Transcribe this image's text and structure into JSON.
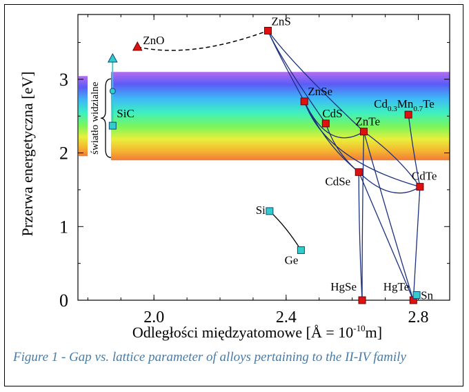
{
  "chart_data": {
    "type": "scatter",
    "title": "",
    "xlabel": "Odległości międzyatomowe [Å = 10",
    "xlabel_sup": "-10",
    "xlabel_tail": "m]",
    "ylabel": "Przerwa energetyczna [eV]",
    "xlim": [
      1.77,
      2.895
    ],
    "ylim": [
      0,
      3.88
    ],
    "x_ticks": [
      2.0,
      2.4,
      2.8
    ],
    "x_tick_labels": [
      "2.0",
      "2.4",
      "2.8"
    ],
    "y_ticks": [
      0,
      1,
      2,
      3
    ],
    "y_tick_labels": [
      "0",
      "1",
      "2",
      "3"
    ],
    "visible_band": {
      "label": "światło widzialne",
      "y_range": [
        1.9,
        3.1
      ],
      "x_start": 1.87
    },
    "colors": {
      "red_marker": "#dd1111",
      "cyan_marker": "#33cccc",
      "curve": "#1a2f80",
      "caption": "#4a7aa6"
    },
    "points": [
      {
        "name": "ZnO",
        "label": "ZnO",
        "x": 1.95,
        "y": 3.44,
        "shape": "triangle",
        "color": "red"
      },
      {
        "name": "ZnS",
        "label": "ZnS",
        "x": 2.345,
        "y": 3.66,
        "shape": "square",
        "color": "red"
      },
      {
        "name": "ZnSe",
        "label": "ZnSe",
        "x": 2.455,
        "y": 2.7,
        "shape": "square",
        "color": "red"
      },
      {
        "name": "CdS",
        "label": "CdS",
        "x": 2.52,
        "y": 2.4,
        "shape": "square",
        "color": "red"
      },
      {
        "name": "ZnTe",
        "label": "ZnTe",
        "x": 2.635,
        "y": 2.29,
        "shape": "square",
        "color": "red"
      },
      {
        "name": "CdSe",
        "label": "CdSe",
        "x": 2.62,
        "y": 1.74,
        "shape": "square",
        "color": "red"
      },
      {
        "name": "CdTe",
        "label": "CdTe",
        "x": 2.805,
        "y": 1.54,
        "shape": "square",
        "color": "red"
      },
      {
        "name": "CdMnTe",
        "label": "Cd",
        "sub1": "0.3",
        "mid": "Mn",
        "sub2": "0.7",
        "tail": "Te",
        "x": 2.77,
        "y": 2.52,
        "shape": "square",
        "color": "red"
      },
      {
        "name": "HgSe",
        "label": "HgSe",
        "x": 2.63,
        "y": 0.0,
        "shape": "square",
        "color": "red"
      },
      {
        "name": "HgTe",
        "label": "HgTe",
        "x": 2.785,
        "y": 0.0,
        "shape": "square",
        "color": "red"
      },
      {
        "name": "SiC",
        "label": "SiC",
        "x": 1.875,
        "y": 2.37,
        "shape": "square",
        "color": "cyan"
      },
      {
        "name": "SiC-circle",
        "label": "",
        "x": 1.875,
        "y": 2.84,
        "shape": "circle",
        "color": "cyan"
      },
      {
        "name": "SiC-triangle",
        "label": "",
        "x": 1.875,
        "y": 3.28,
        "shape": "triangle",
        "color": "cyan"
      },
      {
        "name": "Si",
        "label": "Si",
        "x": 2.35,
        "y": 1.21,
        "shape": "square",
        "color": "cyan"
      },
      {
        "name": "Ge",
        "label": "Ge",
        "x": 2.445,
        "y": 0.68,
        "shape": "square",
        "color": "cyan"
      },
      {
        "name": "Sn",
        "label": "Sn",
        "x": 2.795,
        "y": 0.07,
        "shape": "square",
        "color": "cyan"
      }
    ],
    "dashed_curve": {
      "from": "ZnO",
      "to": "ZnS",
      "via": [
        2.115,
        3.28
      ]
    },
    "curves": [
      {
        "from": "ZnS",
        "to": "ZnSe",
        "via": [
          2.37,
          3.4
        ]
      },
      {
        "from": "ZnS",
        "to": "CdS",
        "via": [
          2.38,
          3.3
        ]
      },
      {
        "from": "ZnS",
        "to": "ZnTe",
        "via": [
          2.42,
          3.2
        ]
      },
      {
        "from": "ZnSe",
        "to": "CdSe",
        "via": [
          2.52,
          2.1
        ]
      },
      {
        "from": "ZnSe",
        "to": "CdTe",
        "via": [
          2.52,
          1.9
        ]
      },
      {
        "from": "ZnSe",
        "to": "ZnTe",
        "via": [
          2.53,
          2.0
        ]
      },
      {
        "from": "CdS",
        "to": "CdSe",
        "via": [
          2.55,
          2.0
        ]
      },
      {
        "from": "ZnTe",
        "to": "CdTe",
        "via": [
          2.74,
          1.95
        ]
      },
      {
        "from": "CdSe",
        "to": "CdTe",
        "via": [
          2.72,
          1.3
        ]
      },
      {
        "from": "CdSe",
        "to": "HgSe",
        "via": [
          2.62,
          0.9
        ]
      },
      {
        "from": "ZnTe",
        "to": "HgSe",
        "via": [
          2.63,
          1.1
        ]
      },
      {
        "from": "ZnTe",
        "to": "HgTe",
        "via": [
          2.71,
          1.1
        ]
      },
      {
        "from": "CdSe",
        "to": "HgTe",
        "via": [
          2.7,
          0.9
        ]
      },
      {
        "from": "CdTe",
        "to": "HgTe",
        "via": [
          2.795,
          0.8
        ]
      },
      {
        "from": "CdMnTe",
        "to": "CdTe",
        "via": [
          2.785,
          2.0
        ]
      },
      {
        "from": "Si",
        "to": "Ge",
        "via": [
          2.4,
          1.0
        ]
      },
      {
        "from": "SiC",
        "to": "SiC-triangle",
        "via": [
          1.875,
          2.8
        ]
      }
    ]
  },
  "caption": "Figure 1 - Gap vs. lattice parameter of alloys pertaining to the II-IV family"
}
